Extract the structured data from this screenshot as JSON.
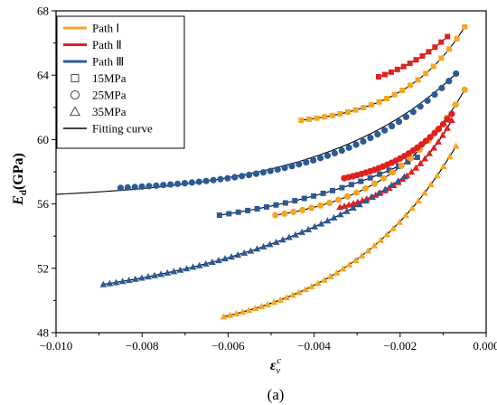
{
  "chart_data": {
    "type": "scatter",
    "x_axis": {
      "min": -0.01,
      "max": 0.0,
      "ticks": [
        -0.01,
        -0.008,
        -0.006,
        -0.004,
        -0.002,
        0.0
      ],
      "tick_labels": [
        "−0.010",
        "−0.008",
        "−0.006",
        "−0.004",
        "−0.002",
        "0.000"
      ],
      "label_main": "ε",
      "label_sub": "v",
      "label_sup": "c"
    },
    "y_axis": {
      "min": 48,
      "max": 68,
      "ticks": [
        48,
        52,
        56,
        60,
        64,
        68
      ],
      "tick_labels": [
        "48",
        "52",
        "56",
        "60",
        "64",
        "68"
      ],
      "label_main": "E",
      "label_sub": "d",
      "label_rest": "(GPa)"
    },
    "caption": "(a)",
    "legend": {
      "placement": "top-left",
      "paths": [
        {
          "label": "Path Ⅰ",
          "color": "#f5a623"
        },
        {
          "label": "Path Ⅱ",
          "color": "#e02020"
        },
        {
          "label": "Path Ⅲ",
          "color": "#2c5a96"
        }
      ],
      "markers": [
        {
          "label": "15MPa",
          "marker": "square"
        },
        {
          "label": "25MPa",
          "marker": "circle"
        },
        {
          "label": "35MPa",
          "marker": "triangle"
        }
      ],
      "fit_label": "Fitting curve",
      "fit_color": "#000000"
    },
    "series": [
      {
        "path": "Ⅰ",
        "pressure": "15MPa",
        "marker": "square",
        "color": "#f5a623",
        "x_start": -0.0043,
        "x_end": -0.0005,
        "y_start": 61.2,
        "y_end": 67.0,
        "k": 2.6,
        "n": 22
      },
      {
        "path": "Ⅱ",
        "pressure": "15MPa",
        "marker": "square",
        "color": "#e02020",
        "x_start": -0.0025,
        "x_end": -0.0009,
        "y_start": 63.9,
        "y_end": 66.4,
        "k": 1.0,
        "n": 12
      },
      {
        "path": "Ⅲ",
        "pressure": "15MPa",
        "marker": "square",
        "color": "#2c5a96",
        "x_start": -0.0062,
        "x_end": -0.0016,
        "y_start": 55.3,
        "y_end": 58.9,
        "k": 1.2,
        "n": 22
      },
      {
        "path": "Ⅰ",
        "pressure": "25MPa",
        "marker": "circle",
        "color": "#f5a623",
        "x_start": -0.0049,
        "x_end": -0.0005,
        "y_start": 55.3,
        "y_end": 63.1,
        "k": 2.4,
        "n": 22
      },
      {
        "path": "Ⅱ",
        "pressure": "25MPa",
        "marker": "circle",
        "color": "#e02020",
        "x_start": -0.0033,
        "x_end": -0.0008,
        "y_start": 57.6,
        "y_end": 61.6,
        "k": 1.8,
        "n": 26
      },
      {
        "path": "Ⅲ",
        "pressure": "25MPa",
        "marker": "circle",
        "color": "#2c5a96",
        "x_start": -0.0085,
        "x_end": -0.0007,
        "y_start": 57.0,
        "y_end": 64.1,
        "k": 3.0,
        "n": 48
      },
      {
        "path": "Ⅰ",
        "pressure": "35MPa",
        "marker": "triangle",
        "color": "#f5a623",
        "x_start": -0.0061,
        "x_end": -0.0007,
        "y_start": 49.0,
        "y_end": 59.6,
        "k": 2.0,
        "n": 38
      },
      {
        "path": "Ⅱ",
        "pressure": "35MPa",
        "marker": "triangle",
        "color": "#e02020",
        "x_start": -0.0034,
        "x_end": -0.0008,
        "y_start": 55.8,
        "y_end": 61.2,
        "k": 2.0,
        "n": 26
      },
      {
        "path": "Ⅲ",
        "pressure": "35MPa",
        "marker": "triangle",
        "color": "#2c5a96",
        "x_start": -0.0089,
        "x_end": -0.0019,
        "y_start": 51.0,
        "y_end": 57.7,
        "k": 1.5,
        "n": 48
      }
    ],
    "fits": [
      {
        "x_start": -0.0043,
        "x_end": -0.0005,
        "y_start": 61.2,
        "y_end": 67.0,
        "k": 2.6
      },
      {
        "x_start": -0.0025,
        "x_end": -0.0009,
        "y_start": 63.9,
        "y_end": 66.4,
        "k": 1.0
      },
      {
        "x_start": -0.0062,
        "x_end": -0.0016,
        "y_start": 55.3,
        "y_end": 58.9,
        "k": 1.2
      },
      {
        "x_start": -0.0049,
        "x_end": -0.0005,
        "y_start": 55.3,
        "y_end": 63.1,
        "k": 2.4
      },
      {
        "x_start": -0.0033,
        "x_end": -0.0008,
        "y_start": 57.6,
        "y_end": 61.6,
        "k": 1.8
      },
      {
        "x_start": -0.01,
        "x_end": -0.0007,
        "y_start": 56.6,
        "y_end": 64.1,
        "k": 3.0
      },
      {
        "x_start": -0.0061,
        "x_end": -0.0007,
        "y_start": 49.0,
        "y_end": 59.6,
        "k": 2.0
      },
      {
        "x_start": -0.0034,
        "x_end": -0.0008,
        "y_start": 55.8,
        "y_end": 61.2,
        "k": 2.0
      },
      {
        "x_start": -0.0089,
        "x_end": -0.0019,
        "y_start": 51.0,
        "y_end": 57.7,
        "k": 1.5
      }
    ]
  }
}
